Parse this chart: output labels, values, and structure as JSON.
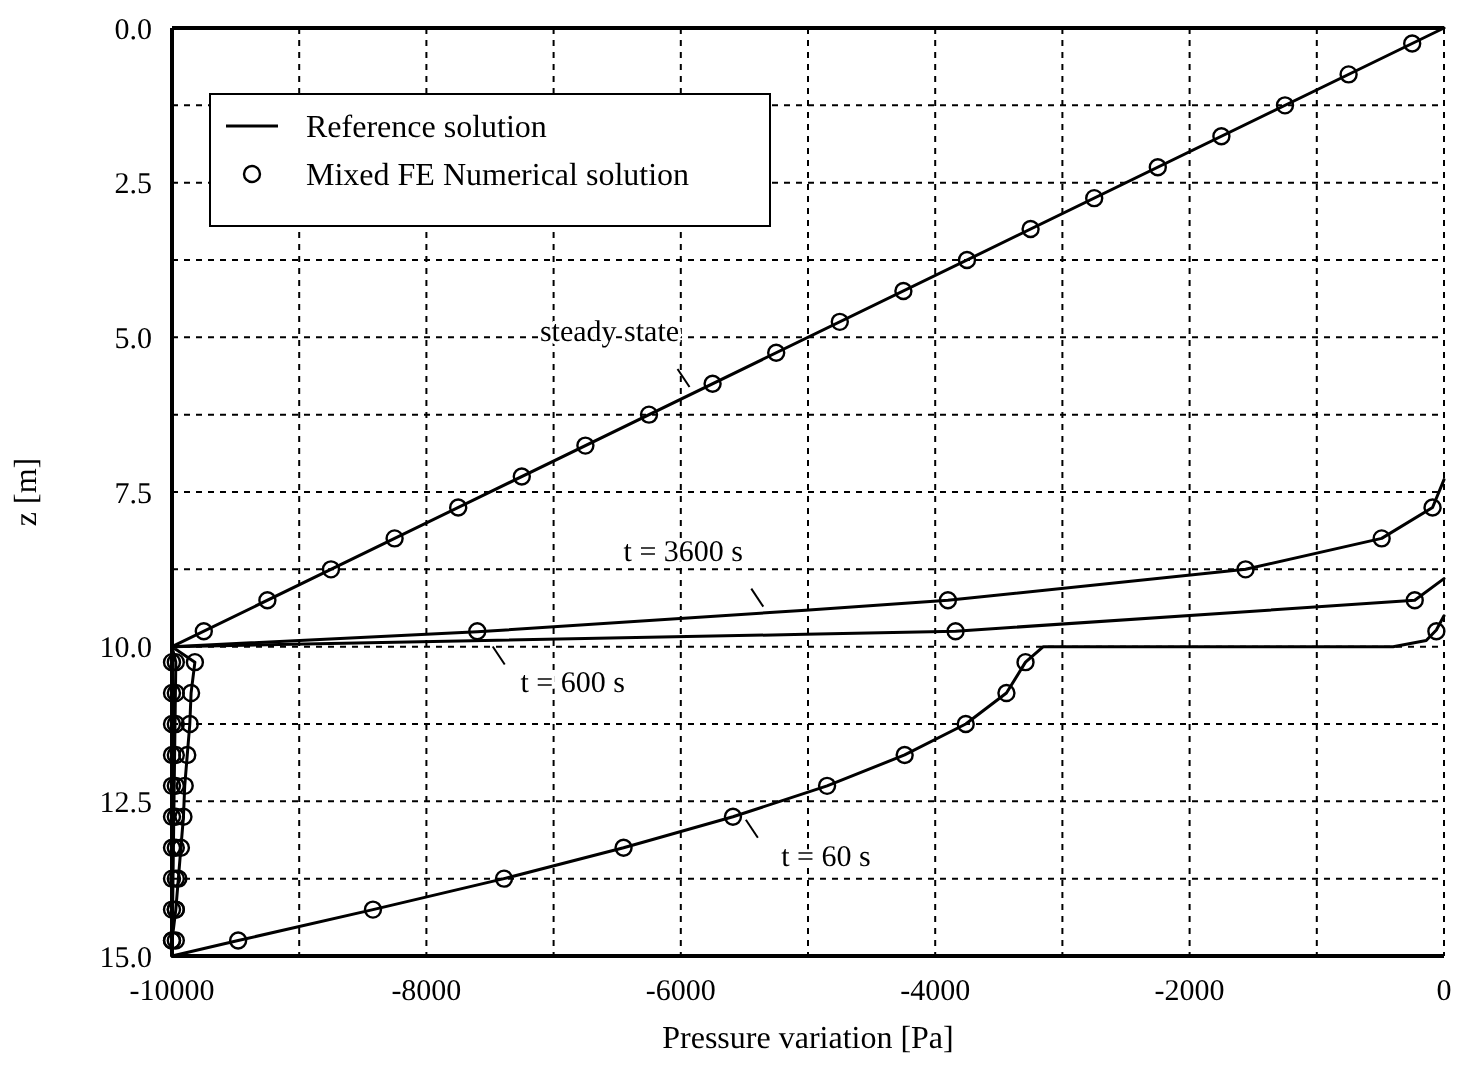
{
  "chart_data": {
    "type": "line",
    "xlabel": "Pressure variation [Pa]",
    "ylabel": "z [m]",
    "xlim": [
      -10000,
      0
    ],
    "ylim": [
      15,
      0
    ],
    "xticks": [
      -10000,
      {
        "value": -9000,
        "label": null
      },
      -8000,
      {
        "value": -7000,
        "label": null
      },
      -6000,
      {
        "value": -5000,
        "label": null
      },
      -4000,
      {
        "value": -3000,
        "label": null
      },
      -2000,
      {
        "value": -1000,
        "label": null
      },
      0
    ],
    "yticks": [
      {
        "value": 0,
        "label": "0.0"
      },
      {
        "value": 1.25,
        "label": null
      },
      {
        "value": 2.5,
        "label": "2.5"
      },
      {
        "value": 3.75,
        "label": null
      },
      {
        "value": 5,
        "label": "5.0"
      },
      {
        "value": 6.25,
        "label": null
      },
      {
        "value": 7.5,
        "label": "7.5"
      },
      {
        "value": 8.75,
        "label": null
      },
      {
        "value": 10,
        "label": "10.0"
      },
      {
        "value": 11.25,
        "label": null
      },
      {
        "value": 12.5,
        "label": "12.5"
      },
      {
        "value": 13.75,
        "label": null
      },
      {
        "value": 15,
        "label": "15.0"
      }
    ],
    "grid": true,
    "legend": "top left",
    "line_style": "solid",
    "series": [
      {
        "name": "Reference solution",
        "color": "#000000",
        "x": [
          0,
          -10000,
          -10000
        ],
        "values": [
          0,
          10,
          15
        ]
      },
      {
        "color": "#000000",
        "x": [
          0,
          -90,
          -490,
          -1560,
          -3900,
          -5020,
          -7600,
          -10000,
          -9970,
          -10000
        ],
        "values": [
          7.3,
          7.75,
          8.25,
          8.75,
          9.25,
          9.41,
          9.76,
          10,
          10.25,
          15
        ]
      },
      {
        "color": "#000000",
        "x": [
          0,
          -230,
          -3840,
          -5020,
          -10000,
          -9820,
          -9850,
          -9860,
          -9880,
          -9900,
          -9910,
          -9930,
          -9950,
          -9970,
          -10000,
          -10000
        ],
        "values": [
          8.9,
          9.25,
          9.75,
          9.8,
          10,
          10.25,
          10.75,
          11.25,
          11.75,
          12.25,
          12.75,
          13.25,
          13.75,
          14.25,
          14.75,
          15
        ]
      },
      {
        "color": "#000000",
        "x": [
          0,
          -60,
          -140,
          -400,
          -3150,
          -3290,
          -3440,
          -3760,
          -4240,
          -4850,
          -5590,
          -6450,
          -7390,
          -8420,
          -9480,
          -10000
        ],
        "values": [
          9.5,
          9.73,
          9.9,
          10,
          10,
          10.25,
          10.75,
          11.25,
          11.75,
          12.25,
          12.75,
          13.25,
          13.75,
          14.25,
          14.75,
          15
        ]
      },
      {
        "name": "Mixed FE Numerical solution",
        "type": "scatter",
        "color": "#000000",
        "marker": "circle",
        "x": [
          -250,
          -750,
          -1250,
          -1750,
          -2250,
          -2750,
          -3250,
          -3750,
          -4250,
          -4750,
          -5250,
          -5750,
          -6250,
          -6750,
          -7250,
          -7750,
          -8250,
          -8750,
          -9250,
          -9750,
          -10000,
          -10000,
          -10000,
          -10000,
          -10000,
          -10000,
          -10000,
          -10000,
          -10000,
          -10000,
          -90,
          -490,
          -1560,
          -3900,
          -7600,
          -9970,
          -9970,
          -9970,
          -9970,
          -9970,
          -9970,
          -9970,
          -9970,
          -9970,
          -9970,
          -230,
          -3840,
          -9820,
          -9850,
          -9860,
          -9880,
          -9900,
          -9910,
          -9930,
          -9950,
          -9970,
          -10000,
          -60,
          -3290,
          -3440,
          -3760,
          -4240,
          -4850,
          -5590,
          -6450,
          -7390,
          -8420,
          -9480
        ],
        "values": [
          0.25,
          0.75,
          1.25,
          1.75,
          2.25,
          2.75,
          3.25,
          3.75,
          4.25,
          4.75,
          5.25,
          5.75,
          6.25,
          6.75,
          7.25,
          7.75,
          8.25,
          8.75,
          9.25,
          9.75,
          10.25,
          10.75,
          11.25,
          11.75,
          12.25,
          12.75,
          13.25,
          13.75,
          14.25,
          14.75,
          7.75,
          8.25,
          8.75,
          9.25,
          9.75,
          10.25,
          10.75,
          11.25,
          11.75,
          12.25,
          12.75,
          13.25,
          13.75,
          14.25,
          14.75,
          9.25,
          9.75,
          10.25,
          10.75,
          11.25,
          11.75,
          12.25,
          12.75,
          13.25,
          13.75,
          14.25,
          14.75,
          9.75,
          10.25,
          10.75,
          11.25,
          11.75,
          12.25,
          12.75,
          13.25,
          13.75,
          14.25,
          14.75
        ]
      }
    ],
    "annotations": [
      {
        "text": "steady state",
        "x": -5900,
        "y": 5.9
      },
      {
        "text": "t = 3600 s",
        "x": -5320,
        "y": 9.45
      },
      {
        "text": "t = 600 s",
        "x": -7510,
        "y": 9.9
      },
      {
        "text": "t = 60 s",
        "x": -5520,
        "y": 12.7
      }
    ]
  }
}
